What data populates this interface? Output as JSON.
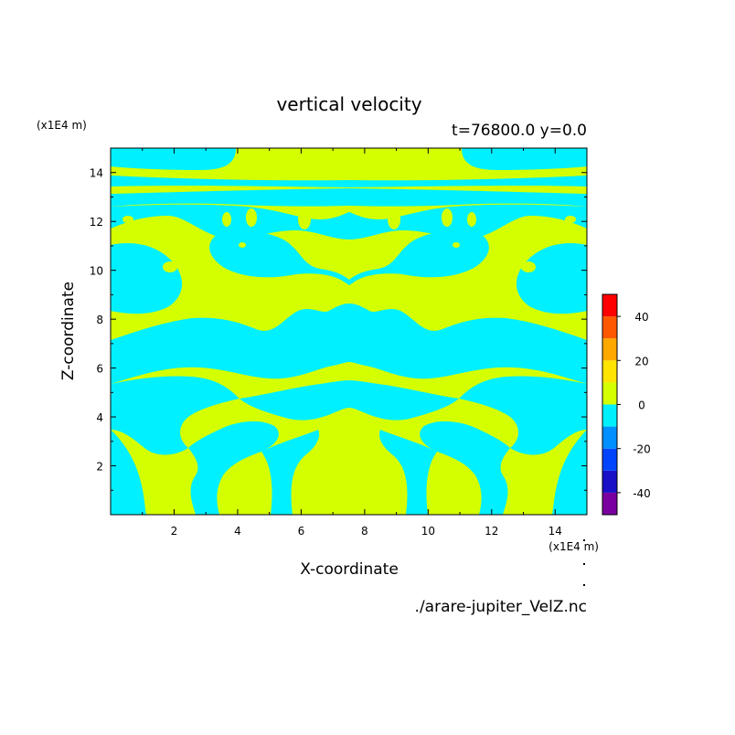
{
  "chart_data": {
    "type": "heatmap",
    "title": "vertical velocity",
    "subtitle": "t=76800.0 y=0.0",
    "xlabel": "X-coordinate",
    "ylabel": "Z-coordinate",
    "x_unit": "(x1E4 m)",
    "y_unit": "(x1E4 m)",
    "xlim": [
      0,
      15
    ],
    "ylim": [
      0,
      15
    ],
    "x_ticks": [
      "2",
      "4",
      "6",
      "8",
      "10",
      "12",
      "14"
    ],
    "y_ticks": [
      "2",
      "4",
      "6",
      "8",
      "10",
      "12",
      "14"
    ],
    "x_tick_values": [
      2,
      4,
      6,
      8,
      10,
      12,
      14
    ],
    "y_tick_values": [
      2,
      4,
      6,
      8,
      10,
      12,
      14
    ],
    "colorbar": {
      "levels": [
        -50,
        -40,
        -30,
        -20,
        -10,
        0,
        10,
        20,
        30,
        40,
        50
      ],
      "colors": [
        "#7a00a0",
        "#1a10c8",
        "#0044ff",
        "#0090ff",
        "#00f0ff",
        "#d4ff00",
        "#ffe400",
        "#ffa800",
        "#ff5800",
        "#ff0000",
        "#ffb0b0"
      ],
      "tick_labels": [
        "-40",
        "-20",
        "0",
        "20",
        "40"
      ],
      "tick_values": [
        -40,
        -20,
        0,
        20,
        40
      ]
    },
    "regions_note_free": true,
    "field_colors": {
      "positive": "#d4ff00",
      "negative": "#00f0ff"
    }
  },
  "source_file": "./arare-jupiter_VelZ.nc"
}
